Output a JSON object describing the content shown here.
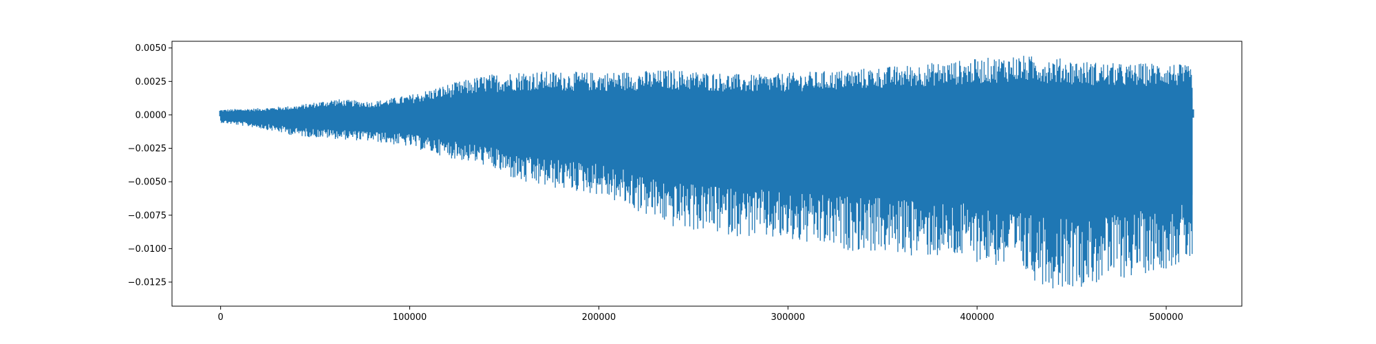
{
  "chart_data": {
    "type": "line",
    "title": "",
    "xlabel": "",
    "ylabel": "",
    "xlim": [
      -25700,
      540000
    ],
    "ylim": [
      -0.0143,
      0.0055
    ],
    "x_ticks": [
      0,
      100000,
      200000,
      300000,
      400000,
      500000
    ],
    "x_tick_labels": [
      "0",
      "100000",
      "200000",
      "300000",
      "400000",
      "500000"
    ],
    "y_ticks": [
      0.005,
      0.0025,
      0.0,
      -0.0025,
      -0.005,
      -0.0075,
      -0.01,
      -0.0125
    ],
    "y_tick_labels": [
      "0.0050",
      "0.0025",
      "0.0000",
      "−0.0025",
      "−0.0050",
      "−0.0075",
      "−0.0100",
      "−0.0125"
    ],
    "grid": false,
    "series": [
      {
        "color": "#1f77b4",
        "x_range": [
          0,
          514000
        ],
        "envelope": {
          "x": [
            0,
            20000,
            40000,
            60000,
            80000,
            100000,
            120000,
            140000,
            160000,
            200000,
            240000,
            280000,
            320000,
            360000,
            400000,
            420000,
            440000,
            460000,
            480000,
            500000,
            514000
          ],
          "max": [
            0.0004,
            0.0005,
            0.0007,
            0.0012,
            0.001,
            0.0015,
            0.0023,
            0.003,
            0.0033,
            0.0032,
            0.0034,
            0.003,
            0.0033,
            0.0037,
            0.0042,
            0.0045,
            0.0043,
            0.004,
            0.0038,
            0.004,
            0.0036
          ],
          "min": [
            -0.0006,
            -0.001,
            -0.0016,
            -0.0018,
            -0.002,
            -0.0024,
            -0.0032,
            -0.0038,
            -0.0052,
            -0.006,
            -0.0085,
            -0.0092,
            -0.01,
            -0.0105,
            -0.011,
            -0.0118,
            -0.013,
            -0.0128,
            -0.0122,
            -0.0115,
            -0.011
          ],
          "core_min": [
            -0.0004,
            -0.0006,
            -0.0009,
            -0.0011,
            -0.0013,
            -0.0014,
            -0.0016,
            -0.0018,
            -0.002,
            -0.0024,
            -0.003,
            -0.004,
            -0.0045,
            -0.005,
            -0.0052,
            -0.0055,
            -0.0055,
            -0.0055,
            -0.0055,
            -0.0057,
            -0.006
          ]
        }
      }
    ]
  }
}
